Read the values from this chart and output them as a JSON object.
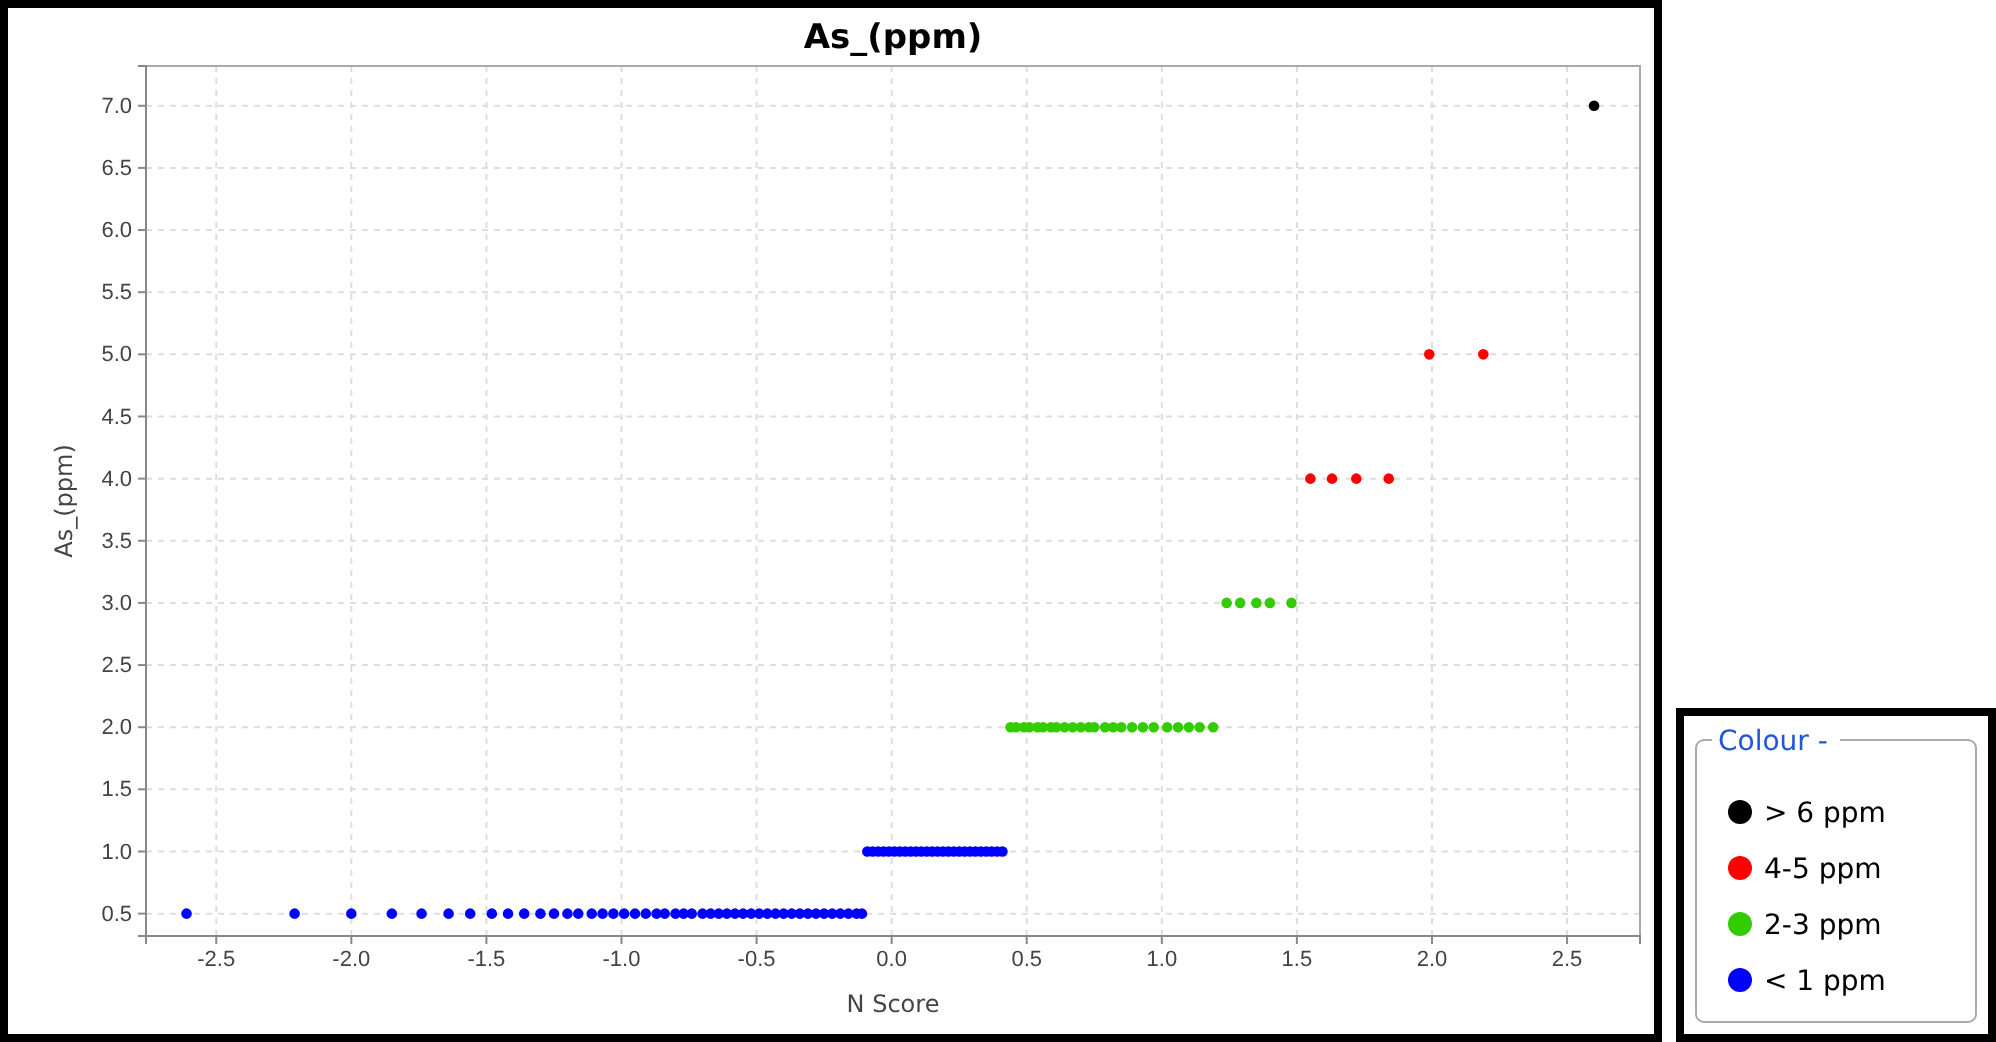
{
  "chart_data": {
    "type": "scatter",
    "title": "As_(ppm)",
    "xlabel": "N Score",
    "ylabel": "As_(ppm)",
    "legend_title": "Colour -",
    "legend": "right",
    "marker": "circle",
    "grid": true,
    "xlim": [
      -2.76,
      2.77
    ],
    "ylim": [
      0.32,
      7.32
    ],
    "xticks": [
      -2.5,
      {
        "value": -2,
        "label": "-2.0"
      },
      -1.5,
      {
        "value": -1,
        "label": "-1.0"
      },
      -0.5,
      {
        "value": 0,
        "label": "0.0"
      },
      0.5,
      {
        "value": 1,
        "label": "1.0"
      },
      1.5,
      {
        "value": 2,
        "label": "2.0"
      },
      2.5
    ],
    "yticks": [
      0.5,
      {
        "value": 1,
        "label": "1.0"
      },
      1.5,
      {
        "value": 2,
        "label": "2.0"
      },
      2.5,
      {
        "value": 3,
        "label": "3.0"
      },
      3.5,
      {
        "value": 4,
        "label": "4.0"
      },
      4.5,
      {
        "value": 5,
        "label": "5.0"
      },
      5.5,
      {
        "value": 6,
        "label": "6.0"
      },
      6.5,
      {
        "value": 7,
        "label": "7.0"
      }
    ],
    "series": [
      {
        "name": "> 6 ppm",
        "color": "#000000",
        "x": [
          2.6
        ],
        "values": [
          7
        ]
      },
      {
        "name": "4-5 ppm",
        "color": "#ff0000",
        "x": [
          1.55,
          1.63,
          1.72,
          1.84,
          1.99,
          2.19
        ],
        "values": [
          4,
          4,
          4,
          4,
          5,
          5
        ]
      },
      {
        "name": "2-3 ppm",
        "color": "#33cc00",
        "x": [
          0.44,
          0.46,
          0.49,
          0.51,
          0.54,
          0.56,
          0.59,
          0.61,
          0.64,
          0.67,
          0.7,
          0.73,
          0.75,
          0.79,
          0.82,
          0.85,
          0.89,
          0.93,
          0.97,
          1.02,
          1.06,
          1.1,
          1.14,
          1.19,
          1.24,
          1.29,
          1.35,
          1.4,
          1.48
        ],
        "values": [
          2,
          2,
          2,
          2,
          2,
          2,
          2,
          2,
          2,
          2,
          2,
          2,
          2,
          2,
          2,
          2,
          2,
          2,
          2,
          2,
          2,
          2,
          2,
          2,
          3,
          3,
          3,
          3,
          3
        ]
      },
      {
        "name": "< 1 ppm",
        "color": "#0000ff",
        "x": [
          -2.61,
          -2.21,
          -2,
          -1.85,
          -1.74,
          -1.64,
          -1.56,
          -1.48,
          -1.42,
          -1.36,
          -1.3,
          -1.25,
          -1.2,
          -1.16,
          -1.11,
          -1.07,
          -1.03,
          -0.99,
          -0.95,
          -0.91,
          -0.87,
          -0.84,
          -0.8,
          -0.77,
          -0.74,
          -0.7,
          -0.67,
          -0.64,
          -0.61,
          -0.58,
          -0.55,
          -0.52,
          -0.49,
          -0.46,
          -0.43,
          -0.4,
          -0.37,
          -0.34,
          -0.31,
          -0.28,
          -0.25,
          -0.22,
          -0.19,
          -0.16,
          -0.13,
          -0.11,
          -0.09,
          -0.07,
          -0.05,
          -0.03,
          -0.01,
          0.01,
          0.03,
          0.05,
          0.07,
          0.09,
          0.11,
          0.13,
          0.15,
          0.17,
          0.19,
          0.21,
          0.23,
          0.25,
          0.27,
          0.29,
          0.31,
          0.33,
          0.35,
          0.37,
          0.39,
          0.41
        ],
        "values": [
          0.5,
          0.5,
          0.5,
          0.5,
          0.5,
          0.5,
          0.5,
          0.5,
          0.5,
          0.5,
          0.5,
          0.5,
          0.5,
          0.5,
          0.5,
          0.5,
          0.5,
          0.5,
          0.5,
          0.5,
          0.5,
          0.5,
          0.5,
          0.5,
          0.5,
          0.5,
          0.5,
          0.5,
          0.5,
          0.5,
          0.5,
          0.5,
          0.5,
          0.5,
          0.5,
          0.5,
          0.5,
          0.5,
          0.5,
          0.5,
          0.5,
          0.5,
          0.5,
          0.5,
          0.5,
          0.5,
          1,
          1,
          1,
          1,
          1,
          1,
          1,
          1,
          1,
          1,
          1,
          1,
          1,
          1,
          1,
          1,
          1,
          1,
          1,
          1,
          1,
          1,
          1,
          1,
          1,
          1
        ]
      }
    ]
  }
}
